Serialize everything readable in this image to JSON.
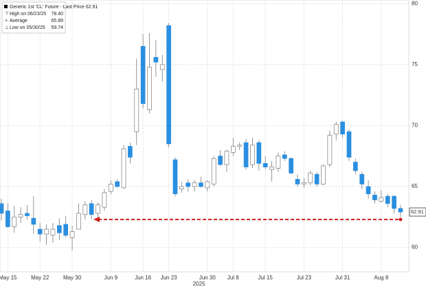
{
  "chart_data": {
    "type": "candlestick",
    "legend": {
      "title": "Generic 1st 'CL' Future - Last Price 62.91",
      "entries": [
        {
          "label": "High on 06/23/25",
          "value": {
            "value": 78.4,
            "label": "78.40"
          }
        },
        {
          "label": "Average",
          "value": {
            "value": 65.89,
            "label": "65.89"
          }
        },
        {
          "label": "Low on 05/30/25",
          "value": {
            "value": 59.74,
            "label": "59.74"
          }
        }
      ]
    },
    "categories": [
      null,
      "May 15",
      null,
      null,
      null,
      null,
      "May 22",
      null,
      null,
      null,
      null,
      "May 30",
      null,
      null,
      null,
      null,
      null,
      "Jun 9",
      null,
      null,
      null,
      null,
      "Jun 16",
      null,
      null,
      null,
      "Jun 23",
      null,
      null,
      null,
      null,
      null,
      "Jun 30",
      null,
      null,
      null,
      "Jul 8",
      null,
      null,
      null,
      null,
      "Jul 15",
      null,
      null,
      null,
      null,
      null,
      "Jul 23",
      null,
      null,
      null,
      null,
      null,
      "Jul 31",
      null,
      null,
      null,
      null,
      null,
      "Aug 8",
      null,
      null,
      null
    ],
    "year_label": "2025",
    "series": [
      {
        "name": "Generic 1st 'CL' Future - Last Price 62.91",
        "open": [
          63.6,
          63,
          61.7,
          62.5,
          62.8,
          62.4,
          61.5,
          61.1,
          61,
          61.8,
          61.9,
          60.8,
          61.5,
          62.7,
          63.6,
          62.8,
          63.3,
          64.6,
          65.4,
          64.9,
          68.3,
          69.5,
          76.5,
          71.3,
          75.6,
          74.6,
          78.2,
          67.2,
          64.8,
          65.3,
          65,
          65.3,
          64.9,
          65.2,
          67.5,
          66.8,
          67.8,
          68.3,
          68.6,
          66.8,
          68.6,
          66.9,
          66.4,
          66.5,
          67.6,
          67.3,
          65.6,
          65.2,
          65.3,
          66,
          65.2,
          66.8,
          69.3,
          70.3,
          69.5,
          67,
          66,
          65,
          64.3,
          63.8,
          64.2,
          64.2,
          63.2
        ],
        "high": [
          64,
          63.6,
          63.4,
          63.3,
          63.5,
          64.2,
          62,
          61.9,
          62,
          62.4,
          62.6,
          61.8,
          63.6,
          63.8,
          63.9,
          63.7,
          64.8,
          65.5,
          65.6,
          68.4,
          68.6,
          75.5,
          77.5,
          77.6,
          77,
          75.8,
          78.4,
          67.4,
          65.4,
          65.6,
          65.5,
          65.8,
          65.5,
          67.5,
          68,
          68,
          69,
          68.6,
          68.9,
          69,
          68.8,
          67.5,
          67.1,
          67.8,
          67.9,
          67.4,
          66,
          65.7,
          66.3,
          66.2,
          66.8,
          69.6,
          70.3,
          70.4,
          69.7,
          67.3,
          66.2,
          65.5,
          64.6,
          64.7,
          64.4,
          64.3,
          63.5
        ],
        "low": [
          62.2,
          61.6,
          61.2,
          62,
          62.3,
          61.1,
          60.5,
          60.2,
          60.4,
          60.6,
          60.8,
          59.74,
          61.5,
          62.3,
          62.3,
          62.2,
          63,
          64.4,
          64.9,
          64.8,
          66.9,
          68.4,
          71.4,
          71,
          74,
          73.6,
          68.2,
          64.2,
          64.5,
          64.6,
          64.6,
          64.9,
          64.6,
          65,
          66.7,
          66.2,
          67.5,
          68,
          66.4,
          66.5,
          66.3,
          66.4,
          65.4,
          66.2,
          67.1,
          66,
          65,
          64.9,
          65.1,
          65,
          65.1,
          66.6,
          68.8,
          69,
          67.1,
          66,
          64.8,
          64,
          63.6,
          63.7,
          63.3,
          62.8,
          62.5
        ],
        "close": [
          62.8,
          61.7,
          62.5,
          62.7,
          62.6,
          61.9,
          61.1,
          61.5,
          61.5,
          61.2,
          61,
          61.3,
          62.8,
          63.5,
          62.7,
          63.5,
          64.5,
          65.2,
          65,
          68.1,
          67.4,
          73,
          71.8,
          74.8,
          75.2,
          75,
          68.5,
          64.4,
          65,
          65,
          65.3,
          65,
          65.4,
          67.3,
          66.8,
          67.9,
          68.3,
          68.4,
          66.6,
          68.4,
          66.9,
          66.6,
          66.6,
          67.5,
          67.3,
          66.1,
          65.2,
          65.3,
          66.1,
          65.2,
          66.7,
          69.2,
          70.1,
          69.3,
          67.4,
          66.3,
          65.2,
          64.4,
          63.9,
          64.1,
          63.6,
          63.2,
          62.91
        ]
      }
    ],
    "colors": {
      "up": "#ffffff",
      "down": "#2b8fe0",
      "outline": "#7a7a7a",
      "reference": "#cc1f1f"
    },
    "last_price": {
      "value": 62.91,
      "label": "62.91"
    },
    "reference_level": 62.3,
    "ylim": [
      58,
      80.3
    ],
    "yticks": [
      60,
      65,
      70,
      75,
      80
    ],
    "grid": true
  }
}
